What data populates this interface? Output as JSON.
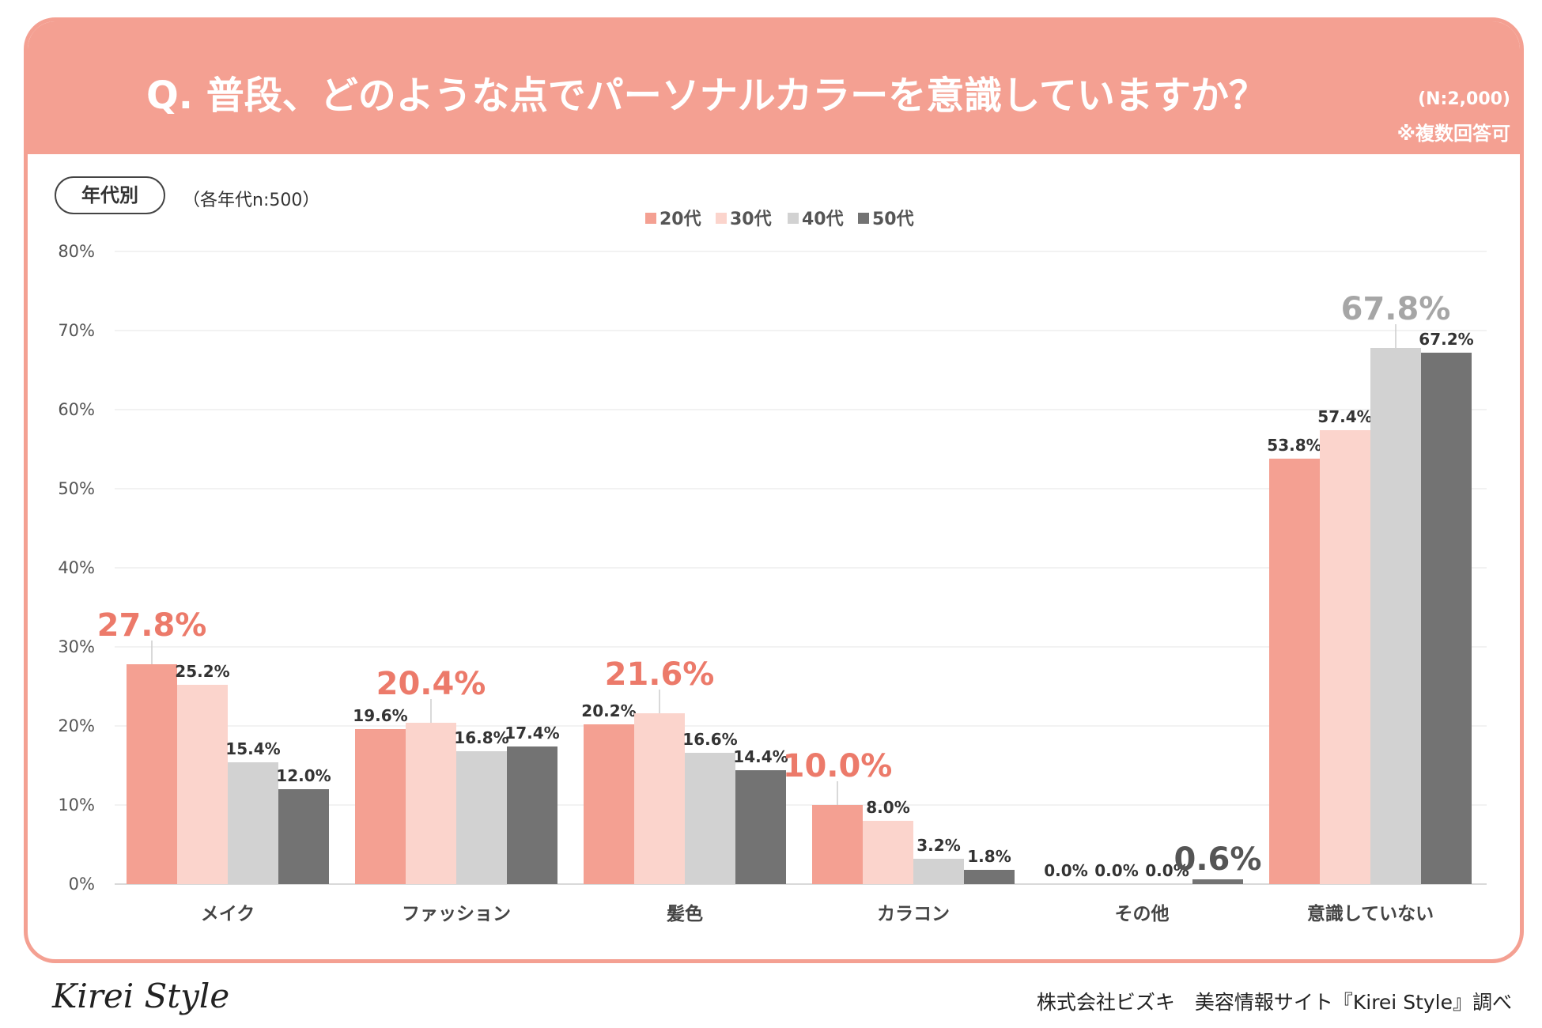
{
  "header": {
    "title": "Q. 普段、どのような点でパーソナルカラーを意識していますか？",
    "n_total": "(N:2,000)",
    "multi_note": "※複数回答可"
  },
  "group": {
    "label": "年代別",
    "n_note": "（各年代n:500）"
  },
  "colors": {
    "accent": "#f4a092",
    "series": [
      "#f4a092",
      "#fbd4cc",
      "#d2d2d2",
      "#737373"
    ],
    "highlight_red": "#ec7a6a",
    "highlight_gray": "#a6a6a6",
    "highlight_dark": "#555555",
    "grid": "#eeeeee",
    "axis": "#d9d9d9"
  },
  "chart_data": {
    "type": "bar",
    "title": "",
    "xlabel": "",
    "ylabel": "",
    "ylim": [
      0,
      80
    ],
    "y_ticks": [
      0,
      10,
      20,
      30,
      40,
      50,
      60,
      70,
      80
    ],
    "y_tick_labels": [
      "0%",
      "10%",
      "20%",
      "30%",
      "40%",
      "50%",
      "60%",
      "70%",
      "80%"
    ],
    "grid": true,
    "legend_position": "top-center",
    "categories": [
      "メイク",
      "ファッション",
      "髪色",
      "カラコン",
      "その他",
      "意識していない"
    ],
    "series": [
      {
        "name": "20代",
        "values": [
          27.8,
          19.6,
          20.2,
          10.0,
          0.0,
          53.8
        ],
        "labels": [
          "27.8%",
          "19.6%",
          "20.2%",
          "10.0%",
          "0.0%",
          "53.8%"
        ]
      },
      {
        "name": "30代",
        "values": [
          25.2,
          20.4,
          21.6,
          8.0,
          0.0,
          57.4
        ],
        "labels": [
          "25.2%",
          "20.4%",
          "21.6%",
          "8.0%",
          "0.0%",
          "57.4%"
        ]
      },
      {
        "name": "40代",
        "values": [
          15.4,
          16.8,
          16.6,
          3.2,
          0.0,
          67.8
        ],
        "labels": [
          "15.4%",
          "16.8%",
          "16.6%",
          "3.2%",
          "0.0%",
          "67.8%"
        ]
      },
      {
        "name": "50代",
        "values": [
          12.0,
          17.4,
          14.4,
          1.8,
          0.6,
          67.2
        ],
        "labels": [
          "12.0%",
          "17.4%",
          "14.4%",
          "1.8%",
          "0.6%",
          "67.2%"
        ]
      }
    ],
    "highlights": [
      {
        "category": 0,
        "series": 0,
        "style": "red"
      },
      {
        "category": 1,
        "series": 1,
        "style": "red"
      },
      {
        "category": 2,
        "series": 1,
        "style": "red"
      },
      {
        "category": 3,
        "series": 0,
        "style": "red"
      },
      {
        "category": 4,
        "series": 3,
        "style": "dark"
      },
      {
        "category": 5,
        "series": 2,
        "style": "gray"
      }
    ]
  },
  "footer": {
    "logo": "Kirei Style",
    "credit": "株式会社ビズキ　美容情報サイト『Kirei Style』調べ"
  }
}
